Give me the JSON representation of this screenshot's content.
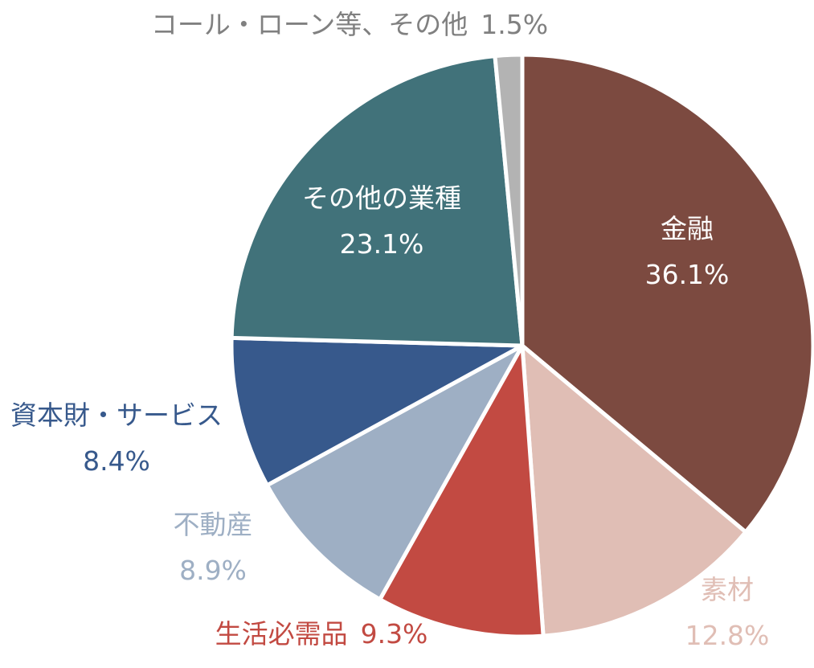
{
  "chart_data": {
    "type": "pie",
    "title": "",
    "start_angle_deg": 0,
    "direction": "clockwise",
    "slices": [
      {
        "label": "金融",
        "value": 36.1,
        "value_label": "36.1%",
        "color": "#7c4a40",
        "label_color": "#ffffff"
      },
      {
        "label": "素材",
        "value": 12.8,
        "value_label": "12.8%",
        "color": "#e0beb5",
        "label_color": "#e0beb5"
      },
      {
        "label": "生活必需品",
        "value": 9.3,
        "value_label": "9.3%",
        "color": "#c24a42",
        "label_color": "#c24a42"
      },
      {
        "label": "不動産",
        "value": 8.9,
        "value_label": "8.9%",
        "color": "#9eafc4",
        "label_color": "#9eafc4"
      },
      {
        "label": "資本財・サービス",
        "value": 8.4,
        "value_label": "8.4%",
        "color": "#37598c",
        "label_color": "#37598c"
      },
      {
        "label": "その他の業種",
        "value": 23.1,
        "value_label": "23.1%",
        "color": "#41727a",
        "label_color": "#ffffff"
      },
      {
        "label": "コール・ローン等、その他",
        "value": 1.5,
        "value_label": "1.5%",
        "color": "#b3b3b3",
        "label_color": "#808080"
      }
    ]
  }
}
